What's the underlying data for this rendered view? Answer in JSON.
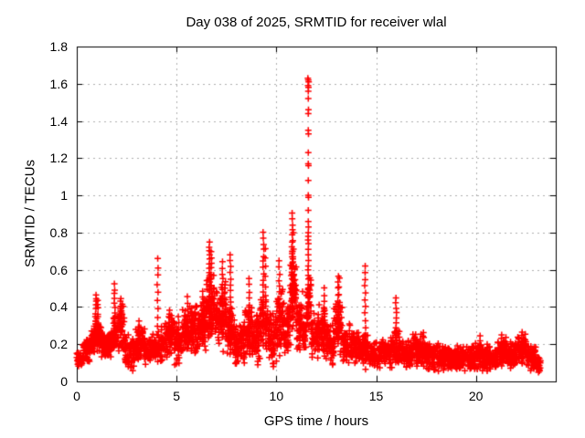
{
  "chart_data": {
    "type": "scatter",
    "title": "Day 038 of 2025, SRMTID for receiver wlal",
    "xlabel": "GPS time / hours",
    "ylabel": "SRMTID / TECUs",
    "xlim": [
      0,
      24
    ],
    "ylim": [
      0,
      1.8
    ],
    "xticks": [
      0,
      5,
      10,
      15,
      20
    ],
    "xtick_labels": [
      "0",
      "5",
      "10",
      "15",
      "20"
    ],
    "yticks": [
      0,
      0.2,
      0.4,
      0.6,
      0.8,
      1,
      1.2,
      1.4,
      1.6,
      1.8
    ],
    "ytick_labels": [
      "0",
      "0.2",
      "0.4",
      "0.6",
      "0.8",
      "1",
      "1.2",
      "1.4",
      "1.6",
      "1.8"
    ],
    "grid": true,
    "legend": "none",
    "marker": "plus",
    "marker_color": "#ff0000",
    "grid_color": "#b0b0b0",
    "axis_color": "#000000",
    "background_color": "#ffffff",
    "x_data_range": [
      0.0,
      23.25
    ],
    "peak_value": 1.63,
    "peak_time": 11.6,
    "baseline_bands": [
      {
        "x0": 0.0,
        "x1": 0.3,
        "ymin": 0.06,
        "ymax": 0.18,
        "n": 40
      },
      {
        "x0": 0.3,
        "x1": 0.7,
        "ymin": 0.1,
        "ymax": 0.24,
        "n": 60
      },
      {
        "x0": 0.7,
        "x1": 0.9,
        "ymin": 0.13,
        "ymax": 0.3,
        "n": 35
      },
      {
        "x0": 0.9,
        "x1": 1.2,
        "ymin": 0.15,
        "ymax": 0.35,
        "n": 45
      },
      {
        "x0": 1.2,
        "x1": 1.8,
        "ymin": 0.12,
        "ymax": 0.27,
        "n": 90
      },
      {
        "x0": 1.8,
        "x1": 2.1,
        "ymin": 0.15,
        "ymax": 0.35,
        "n": 40
      },
      {
        "x0": 2.1,
        "x1": 2.4,
        "ymin": 0.15,
        "ymax": 0.42,
        "n": 50
      },
      {
        "x0": 2.4,
        "x1": 2.9,
        "ymin": 0.05,
        "ymax": 0.27,
        "n": 70
      },
      {
        "x0": 2.9,
        "x1": 3.4,
        "ymin": 0.1,
        "ymax": 0.3,
        "n": 75
      },
      {
        "x0": 3.4,
        "x1": 3.8,
        "ymin": 0.08,
        "ymax": 0.25,
        "n": 55
      },
      {
        "x0": 3.8,
        "x1": 4.2,
        "ymin": 0.08,
        "ymax": 0.28,
        "n": 50
      },
      {
        "x0": 4.2,
        "x1": 4.6,
        "ymin": 0.1,
        "ymax": 0.32,
        "n": 55
      },
      {
        "x0": 4.6,
        "x1": 4.9,
        "ymin": 0.12,
        "ymax": 0.38,
        "n": 45
      },
      {
        "x0": 4.9,
        "x1": 5.3,
        "ymin": 0.07,
        "ymax": 0.33,
        "n": 55
      },
      {
        "x0": 5.3,
        "x1": 5.7,
        "ymin": 0.12,
        "ymax": 0.42,
        "n": 55
      },
      {
        "x0": 5.7,
        "x1": 6.1,
        "ymin": 0.13,
        "ymax": 0.42,
        "n": 70
      },
      {
        "x0": 6.1,
        "x1": 6.5,
        "ymin": 0.15,
        "ymax": 0.48,
        "n": 70
      },
      {
        "x0": 6.5,
        "x1": 6.9,
        "ymin": 0.2,
        "ymax": 0.6,
        "n": 60
      },
      {
        "x0": 6.9,
        "x1": 7.2,
        "ymin": 0.17,
        "ymax": 0.5,
        "n": 45
      },
      {
        "x0": 7.2,
        "x1": 7.5,
        "ymin": 0.15,
        "ymax": 0.55,
        "n": 45
      },
      {
        "x0": 7.5,
        "x1": 7.9,
        "ymin": 0.12,
        "ymax": 0.45,
        "n": 55
      },
      {
        "x0": 7.9,
        "x1": 8.4,
        "ymin": 0.06,
        "ymax": 0.32,
        "n": 80
      },
      {
        "x0": 8.4,
        "x1": 8.8,
        "ymin": 0.1,
        "ymax": 0.42,
        "n": 60
      },
      {
        "x0": 8.8,
        "x1": 9.2,
        "ymin": 0.08,
        "ymax": 0.4,
        "n": 60
      },
      {
        "x0": 9.2,
        "x1": 9.6,
        "ymin": 0.15,
        "ymax": 0.5,
        "n": 50
      },
      {
        "x0": 9.6,
        "x1": 10.0,
        "ymin": 0.06,
        "ymax": 0.42,
        "n": 65
      },
      {
        "x0": 10.0,
        "x1": 10.4,
        "ymin": 0.12,
        "ymax": 0.52,
        "n": 60
      },
      {
        "x0": 10.4,
        "x1": 10.7,
        "ymin": 0.12,
        "ymax": 0.45,
        "n": 45
      },
      {
        "x0": 10.7,
        "x1": 11.0,
        "ymin": 0.25,
        "ymax": 0.7,
        "n": 60
      },
      {
        "x0": 11.0,
        "x1": 11.3,
        "ymin": 0.15,
        "ymax": 0.5,
        "n": 50
      },
      {
        "x0": 11.3,
        "x1": 11.5,
        "ymin": 0.15,
        "ymax": 0.4,
        "n": 30
      },
      {
        "x0": 11.5,
        "x1": 11.75,
        "ymin": 0.25,
        "ymax": 0.6,
        "n": 35
      },
      {
        "x0": 11.75,
        "x1": 12.1,
        "ymin": 0.1,
        "ymax": 0.38,
        "n": 55
      },
      {
        "x0": 12.1,
        "x1": 12.5,
        "ymin": 0.12,
        "ymax": 0.42,
        "n": 60
      },
      {
        "x0": 12.5,
        "x1": 12.9,
        "ymin": 0.08,
        "ymax": 0.35,
        "n": 60
      },
      {
        "x0": 12.9,
        "x1": 13.3,
        "ymin": 0.12,
        "ymax": 0.45,
        "n": 55
      },
      {
        "x0": 13.3,
        "x1": 13.8,
        "ymin": 0.08,
        "ymax": 0.32,
        "n": 65
      },
      {
        "x0": 13.8,
        "x1": 14.3,
        "ymin": 0.08,
        "ymax": 0.28,
        "n": 60
      },
      {
        "x0": 14.3,
        "x1": 14.6,
        "ymin": 0.07,
        "ymax": 0.3,
        "n": 40
      },
      {
        "x0": 14.6,
        "x1": 15.2,
        "ymin": 0.06,
        "ymax": 0.22,
        "n": 70
      },
      {
        "x0": 15.2,
        "x1": 15.8,
        "ymin": 0.07,
        "ymax": 0.24,
        "n": 70
      },
      {
        "x0": 15.8,
        "x1": 16.2,
        "ymin": 0.08,
        "ymax": 0.28,
        "n": 50
      },
      {
        "x0": 16.2,
        "x1": 16.8,
        "ymin": 0.06,
        "ymax": 0.24,
        "n": 80
      },
      {
        "x0": 16.8,
        "x1": 17.4,
        "ymin": 0.07,
        "ymax": 0.27,
        "n": 85
      },
      {
        "x0": 17.4,
        "x1": 18.2,
        "ymin": 0.05,
        "ymax": 0.22,
        "n": 110
      },
      {
        "x0": 18.2,
        "x1": 19.0,
        "ymin": 0.04,
        "ymax": 0.2,
        "n": 110
      },
      {
        "x0": 19.0,
        "x1": 19.8,
        "ymin": 0.05,
        "ymax": 0.2,
        "n": 105
      },
      {
        "x0": 19.8,
        "x1": 20.6,
        "ymin": 0.05,
        "ymax": 0.21,
        "n": 105
      },
      {
        "x0": 20.6,
        "x1": 21.1,
        "ymin": 0.06,
        "ymax": 0.2,
        "n": 65
      },
      {
        "x0": 21.1,
        "x1": 21.6,
        "ymin": 0.07,
        "ymax": 0.25,
        "n": 70
      },
      {
        "x0": 21.6,
        "x1": 22.1,
        "ymin": 0.06,
        "ymax": 0.22,
        "n": 70
      },
      {
        "x0": 22.1,
        "x1": 22.5,
        "ymin": 0.08,
        "ymax": 0.26,
        "n": 55
      },
      {
        "x0": 22.5,
        "x1": 23.0,
        "ymin": 0.05,
        "ymax": 0.2,
        "n": 65
      },
      {
        "x0": 23.0,
        "x1": 23.25,
        "ymin": 0.04,
        "ymax": 0.15,
        "n": 30
      }
    ],
    "vertical_spikes": [
      {
        "x": 0.95,
        "ybase": 0.2,
        "ytop": 0.47,
        "n": 14
      },
      {
        "x": 1.05,
        "ybase": 0.22,
        "ytop": 0.44,
        "n": 10
      },
      {
        "x": 1.9,
        "ybase": 0.2,
        "ytop": 0.52,
        "n": 14
      },
      {
        "x": 2.2,
        "ybase": 0.25,
        "ytop": 0.45,
        "n": 10
      },
      {
        "x": 3.1,
        "ybase": 0.15,
        "ytop": 0.32,
        "n": 8
      },
      {
        "x": 4.05,
        "ybase": 0.25,
        "ytop": 0.66,
        "n": 10
      },
      {
        "x": 4.65,
        "ybase": 0.15,
        "ytop": 0.38,
        "n": 8
      },
      {
        "x": 5.1,
        "ybase": 0.1,
        "ytop": 0.35,
        "n": 8
      },
      {
        "x": 5.55,
        "ybase": 0.18,
        "ytop": 0.45,
        "n": 10
      },
      {
        "x": 6.3,
        "ybase": 0.2,
        "ytop": 0.48,
        "n": 10
      },
      {
        "x": 6.65,
        "ybase": 0.25,
        "ytop": 0.75,
        "n": 22
      },
      {
        "x": 6.75,
        "ybase": 0.3,
        "ytop": 0.7,
        "n": 14
      },
      {
        "x": 7.3,
        "ybase": 0.25,
        "ytop": 0.64,
        "n": 14
      },
      {
        "x": 7.7,
        "ybase": 0.2,
        "ytop": 0.68,
        "n": 16
      },
      {
        "x": 8.65,
        "ybase": 0.18,
        "ytop": 0.55,
        "n": 12
      },
      {
        "x": 9.35,
        "ybase": 0.2,
        "ytop": 0.8,
        "n": 20
      },
      {
        "x": 9.45,
        "ybase": 0.25,
        "ytop": 0.72,
        "n": 10
      },
      {
        "x": 10.15,
        "ybase": 0.2,
        "ytop": 0.65,
        "n": 14
      },
      {
        "x": 10.8,
        "ybase": 0.35,
        "ytop": 0.9,
        "n": 20
      },
      {
        "x": 10.85,
        "ybase": 0.3,
        "ytop": 0.8,
        "n": 12
      },
      {
        "x": 12.4,
        "ybase": 0.2,
        "ytop": 0.5,
        "n": 10
      },
      {
        "x": 13.1,
        "ybase": 0.2,
        "ytop": 0.57,
        "n": 12
      },
      {
        "x": 13.15,
        "ybase": 0.25,
        "ytop": 0.55,
        "n": 8
      },
      {
        "x": 14.45,
        "ybase": 0.07,
        "ytop": 0.62,
        "n": 16
      },
      {
        "x": 16.0,
        "ybase": 0.1,
        "ytop": 0.45,
        "n": 14
      },
      {
        "x": 20.2,
        "ybase": 0.08,
        "ytop": 0.24,
        "n": 8
      },
      {
        "x": 21.3,
        "ybase": 0.08,
        "ytop": 0.25,
        "n": 8
      },
      {
        "x": 22.3,
        "ybase": 0.1,
        "ytop": 0.27,
        "n": 8
      }
    ],
    "peak_points": [
      [
        11.58,
        1.63
      ],
      [
        11.6,
        1.62
      ],
      [
        11.62,
        1.61
      ],
      [
        11.59,
        1.59
      ],
      [
        11.61,
        1.58
      ],
      [
        11.6,
        1.56
      ],
      [
        11.6,
        1.52
      ],
      [
        11.61,
        1.46
      ],
      [
        11.6,
        1.44
      ],
      [
        11.6,
        1.35
      ],
      [
        11.61,
        1.33
      ],
      [
        11.6,
        1.23
      ],
      [
        11.6,
        1.17
      ],
      [
        11.61,
        1.16
      ],
      [
        11.6,
        1.08
      ],
      [
        11.6,
        1.0
      ],
      [
        11.61,
        0.99
      ],
      [
        11.6,
        0.92
      ],
      [
        11.6,
        0.86
      ],
      [
        11.61,
        0.83
      ],
      [
        11.6,
        0.8
      ],
      [
        11.6,
        0.78
      ],
      [
        11.59,
        0.76
      ],
      [
        11.61,
        0.74
      ],
      [
        11.6,
        0.71
      ],
      [
        11.6,
        0.68
      ],
      [
        11.61,
        0.65
      ],
      [
        11.6,
        0.62
      ],
      [
        11.59,
        0.6
      ],
      [
        11.6,
        0.57
      ],
      [
        11.61,
        0.55
      ],
      [
        11.6,
        0.52
      ],
      [
        11.6,
        0.5
      ],
      [
        11.59,
        0.47
      ],
      [
        11.6,
        0.45
      ],
      [
        11.6,
        0.42
      ],
      [
        11.61,
        0.4
      ],
      [
        11.6,
        0.37
      ],
      [
        11.6,
        0.35
      ]
    ]
  }
}
